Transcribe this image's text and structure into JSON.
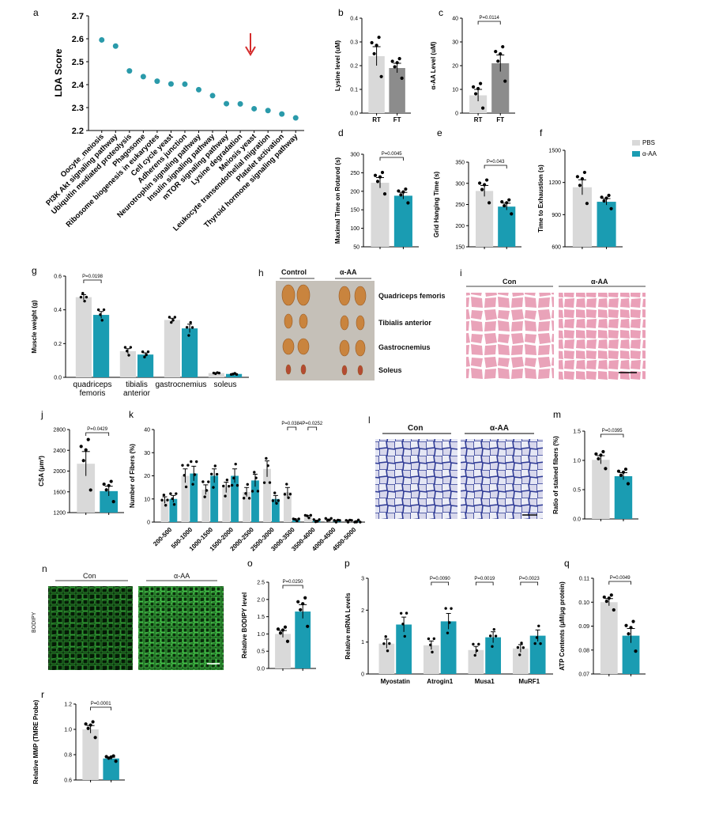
{
  "colors": {
    "pbs": "#d9d9d9",
    "aaa": "#1a9cb2",
    "rt": "#d9d9d9",
    "ft": "#8c8c8c",
    "dot": "#2a9aaa",
    "arrow": "#d42b2b"
  },
  "legend": [
    "PBS",
    "α-AA"
  ],
  "chart_data": [
    {
      "panel": "a",
      "type": "scatter",
      "ylabel": "LDA Score",
      "ylim": [
        2.2,
        2.7
      ],
      "yticks": [
        "2.2",
        "2.3",
        "2.4",
        "2.5",
        "2.6",
        "2.7"
      ],
      "categories": [
        "Oocyte_meiosis",
        "PI3K Akt signaling pathway",
        "Ubiquitin mediated proteolysis",
        "Phagosome",
        "Ribosome biogenesis in eukaryotes",
        "Cell cycle yeast",
        "Adherens junction",
        "Neurotrophin signaling pathway",
        "Insulin signaling pathway",
        "mTOR signaling pathway",
        "Lysine degradation",
        "Meiosis yeast",
        "Leukocyte transendothelial migration",
        "Platelet activation",
        "Thyroid hormone signaling pathway"
      ],
      "values": [
        2.595,
        2.568,
        2.46,
        2.435,
        2.415,
        2.403,
        2.402,
        2.378,
        2.352,
        2.317,
        2.316,
        2.295,
        2.287,
        2.272,
        2.255
      ],
      "highlight": "Lysine degradation"
    },
    {
      "panel": "b",
      "type": "bar",
      "ylabel": "Lysine level (uM)",
      "ylim": [
        0,
        0.4
      ],
      "yticks": [
        "0.0",
        "0.1",
        "0.2",
        "0.3",
        "0.4"
      ],
      "categories": [
        "RT",
        "FT"
      ],
      "values": [
        0.24,
        0.19
      ],
      "sem": [
        0.04,
        0.02
      ]
    },
    {
      "panel": "c",
      "type": "bar",
      "ylabel": "α-AA Level (uM)",
      "ylim": [
        0,
        40
      ],
      "yticks": [
        "0",
        "10",
        "20",
        "30",
        "40"
      ],
      "categories": [
        "RT",
        "FT"
      ],
      "values": [
        7.5,
        21
      ],
      "sem": [
        2.5,
        3.5
      ],
      "pvalue": "P=0.0114"
    },
    {
      "panel": "d",
      "type": "bar",
      "ylabel": "Maximal Time on Rotarod (s)",
      "ylim": [
        50,
        300
      ],
      "yticks": [
        "50",
        "100",
        "150",
        "200",
        "250",
        "300"
      ],
      "categories": [
        "PBS",
        "α-AA"
      ],
      "values": [
        223,
        188
      ],
      "sem": [
        14,
        9
      ],
      "pvalue": "P=0.0045"
    },
    {
      "panel": "e",
      "type": "bar",
      "ylabel": "Grid Hanging Time (s)",
      "ylim": [
        150,
        350
      ],
      "yticks": [
        "150",
        "200",
        "250",
        "300",
        "350"
      ],
      "categories": [
        "PBS",
        "α-AA"
      ],
      "values": [
        282,
        245
      ],
      "sem": [
        13,
        8
      ],
      "pvalue": "P=0.043"
    },
    {
      "panel": "f",
      "type": "bar",
      "ylabel": "Time to Exhaustion (s)",
      "ylim": [
        600,
        1500
      ],
      "yticks": [
        "600",
        "900",
        "1200",
        "1500"
      ],
      "categories": [
        "PBS",
        "α-AA"
      ],
      "values": [
        1155,
        1020
      ],
      "sem": [
        70,
        30
      ]
    },
    {
      "panel": "g",
      "type": "bar",
      "ylabel": "Muscle weight (g)",
      "ylim": [
        0,
        0.6
      ],
      "yticks": [
        "0.0",
        "0.2",
        "0.4",
        "0.6"
      ],
      "categories": [
        "quadriceps femoris",
        "tibialis anterior",
        "gastrocnemius",
        "soleus"
      ],
      "series": [
        {
          "name": "PBS",
          "values": [
            0.475,
            0.155,
            0.34,
            0.025
          ]
        },
        {
          "name": "α-AA",
          "values": [
            0.37,
            0.135,
            0.29,
            0.02
          ]
        }
      ],
      "sem": [
        [
          0.015,
          0.02
        ],
        [
          0.015,
          0.01
        ],
        [
          0.01,
          0.025
        ],
        [
          0.002,
          0.002
        ]
      ],
      "pvalue": "P=0.0198"
    },
    {
      "panel": "j",
      "type": "bar",
      "ylabel": "CSA (μm²)",
      "ylim": [
        1100,
        2800
      ],
      "yticks": [
        "1200",
        "1600",
        "2000",
        "2400",
        "2800"
      ],
      "categories": [
        "PBS",
        "α-AA"
      ],
      "values": [
        2100,
        1540
      ],
      "sem": [
        250,
        100
      ],
      "pvalue": "P=0.0429"
    },
    {
      "panel": "k",
      "type": "bar",
      "ylabel": "Number of Fibers (%)",
      "ylim": [
        0,
        40
      ],
      "yticks": [
        "0",
        "10",
        "20",
        "30",
        "40"
      ],
      "categories": [
        "200-500",
        "500-1000",
        "1000-1500",
        "1500-2000",
        "2000-2500",
        "2500-3000",
        "3000-3500",
        "3500-4000",
        "4000-4500",
        "4500-5000"
      ],
      "series": [
        {
          "name": "PBS",
          "values": [
            9.5,
            20,
            14,
            15,
            13,
            23,
            13,
            2.5,
            1,
            0.5
          ]
        },
        {
          "name": "α-AA",
          "values": [
            10,
            21,
            20,
            20,
            18,
            10,
            1,
            0.5,
            0.5,
            0.3
          ]
        }
      ],
      "pvalues": [
        "P=0.0384",
        "P=0.0252"
      ]
    },
    {
      "panel": "m",
      "type": "bar",
      "ylabel": "Ratio of stained fibers (%)",
      "ylim": [
        0,
        1.5
      ],
      "yticks": [
        "0.0",
        "0.5",
        "1.0",
        "1.5"
      ],
      "categories": [
        "PBS",
        "α-AA"
      ],
      "values": [
        1.01,
        0.73
      ],
      "sem": [
        0.07,
        0.06
      ],
      "pvalue": "P=0.0395"
    },
    {
      "panel": "o",
      "type": "bar",
      "ylabel": "Relative BODIPY level",
      "ylim": [
        0,
        2.5
      ],
      "yticks": [
        "0.0",
        "0.5",
        "1.0",
        "1.5",
        "2.0",
        "2.5"
      ],
      "categories": [
        "PBS",
        "α-AA"
      ],
      "values": [
        1.0,
        1.65
      ],
      "sem": [
        0.1,
        0.2
      ],
      "pvalue": "P=0.0250"
    },
    {
      "panel": "p",
      "type": "bar",
      "ylabel": "Relative mRNA Levels",
      "ylim": [
        0,
        3
      ],
      "yticks": [
        "0",
        "1",
        "2",
        "3"
      ],
      "categories": [
        "Myostatin",
        "Atrogin1",
        "Musa1",
        "MuRF1"
      ],
      "series": [
        {
          "name": "PBS",
          "values": [
            0.95,
            0.9,
            0.75,
            0.8
          ]
        },
        {
          "name": "α-AA",
          "values": [
            1.55,
            1.65,
            1.15,
            1.2
          ]
        }
      ],
      "pvalues": [
        "P=0.0090",
        "P=0.0019",
        "P=0.0023"
      ]
    },
    {
      "panel": "q",
      "type": "bar",
      "ylabel": "ATP Contents (μM/μg protein)",
      "ylim": [
        0.07,
        0.11
      ],
      "yticks": [
        "0.07",
        "0.08",
        "0.09",
        "0.10",
        "0.11"
      ],
      "categories": [
        "PBS",
        "α-AA"
      ],
      "values": [
        0.1,
        0.086
      ],
      "sem": [
        0.0015,
        0.003
      ],
      "pvalue": "P=0.0049"
    },
    {
      "panel": "r",
      "type": "bar",
      "ylabel": "Relative MMP (TMRE Probe)",
      "ylim": [
        0.6,
        1.2
      ],
      "yticks": [
        "0.6",
        "0.8",
        "1.0",
        "1.2"
      ],
      "categories": [
        "PBS",
        "α-AA"
      ],
      "values": [
        1.0,
        0.77
      ],
      "sem": [
        0.03,
        0.01
      ],
      "pvalue": "P=0.0001"
    }
  ],
  "panel_h": {
    "label": "h",
    "groups": [
      "Control",
      "α-AA"
    ],
    "muscles": [
      "Quadriceps femoris",
      "Tibialis anterior",
      "Gastrocnemius",
      "Soleus"
    ]
  },
  "panel_i": {
    "label": "i",
    "groups": [
      "Con",
      "α-AA"
    ]
  },
  "panel_l": {
    "label": "l",
    "groups": [
      "Con",
      "α-AA"
    ]
  },
  "panel_n": {
    "label": "n",
    "groups": [
      "Con",
      "α-AA"
    ],
    "stain": "BODIPY"
  }
}
